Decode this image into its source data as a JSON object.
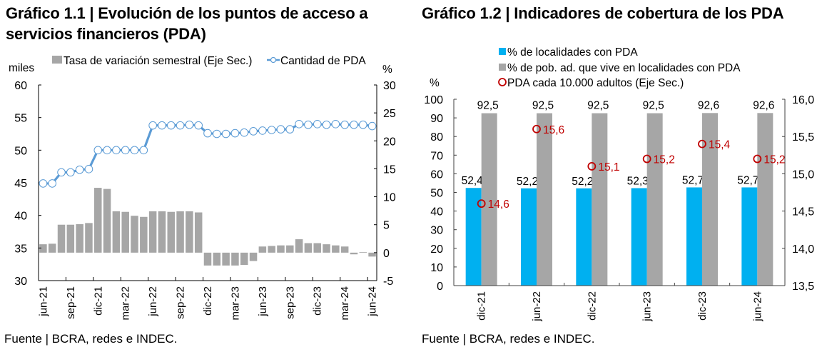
{
  "chart_data": [
    {
      "id": "grafico-1-1",
      "type": "bar",
      "title": "Gráfico 1.1 | Evolución de los puntos de acceso a servicios financieros (PDA)",
      "source": "Fuente | BCRA, redes e INDEC.",
      "ylabel": "miles",
      "y2label": "%",
      "ylim": [
        30,
        60
      ],
      "yticks": [
        30,
        35,
        40,
        45,
        50,
        55,
        60
      ],
      "y2lim": [
        -5,
        30
      ],
      "y2ticks": [
        -5,
        0,
        5,
        10,
        15,
        20,
        25,
        30
      ],
      "x_tick_labels": [
        "jun-21",
        "sep-21",
        "dic-21",
        "mar-22",
        "jun-22",
        "sep-22",
        "dic-22",
        "mar-23",
        "jun-23",
        "sep-23",
        "dic-23",
        "mar-24",
        "jun-24"
      ],
      "x_tick_every": 3,
      "legend": {
        "placement": "top",
        "entries": [
          "Tasa de variación semestral (Eje Sec.)",
          "Cantidad de PDA"
        ]
      },
      "colors": {
        "bars": "#a6a6a6",
        "line": "#5b9bd5",
        "marker_fill": "#ffffff"
      },
      "x": [
        "jun-21",
        "jul-21",
        "ago-21",
        "sep-21",
        "oct-21",
        "nov-21",
        "dic-21",
        "ene-22",
        "feb-22",
        "mar-22",
        "abr-22",
        "may-22",
        "jun-22",
        "jul-22",
        "ago-22",
        "sep-22",
        "oct-22",
        "nov-22",
        "dic-22",
        "ene-23",
        "feb-23",
        "mar-23",
        "abr-23",
        "may-23",
        "jun-23",
        "jul-23",
        "ago-23",
        "sep-23",
        "oct-23",
        "nov-23",
        "dic-23",
        "ene-24",
        "feb-24",
        "mar-24",
        "abr-24",
        "may-24",
        "jun-24"
      ],
      "series": [
        {
          "name": "Tasa de variación semestral (Eje Sec.)",
          "type": "bar",
          "axis": "secondary",
          "values": [
            1.5,
            1.6,
            5.0,
            5.0,
            5.1,
            5.3,
            11.6,
            11.4,
            7.4,
            7.3,
            6.6,
            6.4,
            7.4,
            7.4,
            7.3,
            7.4,
            7.4,
            7.2,
            -2.3,
            -2.3,
            -2.3,
            -2.3,
            -2.2,
            -1.5,
            1.1,
            1.2,
            1.3,
            1.3,
            2.4,
            1.7,
            1.7,
            1.5,
            1.3,
            1.1,
            -0.3,
            0.1,
            -0.7
          ]
        },
        {
          "name": "Cantidad de PDA",
          "type": "line",
          "axis": "primary",
          "values": [
            44.9,
            44.9,
            46.6,
            46.6,
            47.0,
            47.1,
            50.0,
            50.0,
            50.0,
            50.0,
            50.0,
            50.0,
            53.8,
            53.8,
            53.8,
            53.8,
            53.9,
            53.8,
            52.6,
            52.5,
            52.5,
            52.6,
            52.7,
            52.9,
            53.0,
            53.1,
            53.2,
            53.2,
            54.0,
            53.9,
            54.0,
            53.9,
            54.0,
            53.9,
            53.9,
            53.9,
            53.7
          ]
        }
      ]
    },
    {
      "id": "grafico-1-2",
      "type": "bar",
      "title": "Gráfico 1.2 | Indicadores de cobertura de los PDA",
      "source": "Fuente | BCRA, redes e INDEC.",
      "ylabel": "%",
      "ylim": [
        0,
        100
      ],
      "yticks": [
        0,
        10,
        20,
        30,
        40,
        50,
        60,
        70,
        80,
        90,
        100
      ],
      "y2lim": [
        13.5,
        16.0
      ],
      "y2ticks": [
        "13,5",
        "14,0",
        "14,5",
        "15,0",
        "15,5",
        "16,0"
      ],
      "y2tick_values": [
        13.5,
        14.0,
        14.5,
        15.0,
        15.5,
        16.0
      ],
      "categories": [
        "dic-21",
        "jun-22",
        "dic-22",
        "jun-23",
        "dic-23",
        "jun-24"
      ],
      "legend": {
        "placement": "top",
        "entries": [
          "% de localidades con PDA",
          "% de pob. ad. que vive en localidades con PDA",
          "PDA cada 10.000 adultos (Eje Sec.)"
        ]
      },
      "colors": {
        "localidades": "#00b0f0",
        "poblacion": "#a6a6a6",
        "pda_adultos": "#c00000"
      },
      "series": [
        {
          "name": "% de localidades con PDA",
          "type": "bar",
          "axis": "primary",
          "values": [
            52.4,
            52.2,
            52.2,
            52.3,
            52.7,
            52.7
          ],
          "labels": [
            "52,4",
            "52,2",
            "52,2",
            "52,3",
            "52,7",
            "52,7"
          ]
        },
        {
          "name": "% de pob. ad. que vive en localidades con PDA",
          "type": "bar",
          "axis": "primary",
          "values": [
            92.5,
            92.5,
            92.5,
            92.5,
            92.6,
            92.6
          ],
          "labels": [
            "92,5",
            "92,5",
            "92,5",
            "92,5",
            "92,6",
            "92,6"
          ]
        },
        {
          "name": "PDA cada 10.000 adultos (Eje Sec.)",
          "type": "scatter",
          "axis": "secondary",
          "values": [
            14.6,
            15.6,
            15.1,
            15.2,
            15.4,
            15.2
          ],
          "labels": [
            "14,6",
            "15,6",
            "15,1",
            "15,2",
            "15,4",
            "15,2"
          ]
        }
      ]
    }
  ]
}
